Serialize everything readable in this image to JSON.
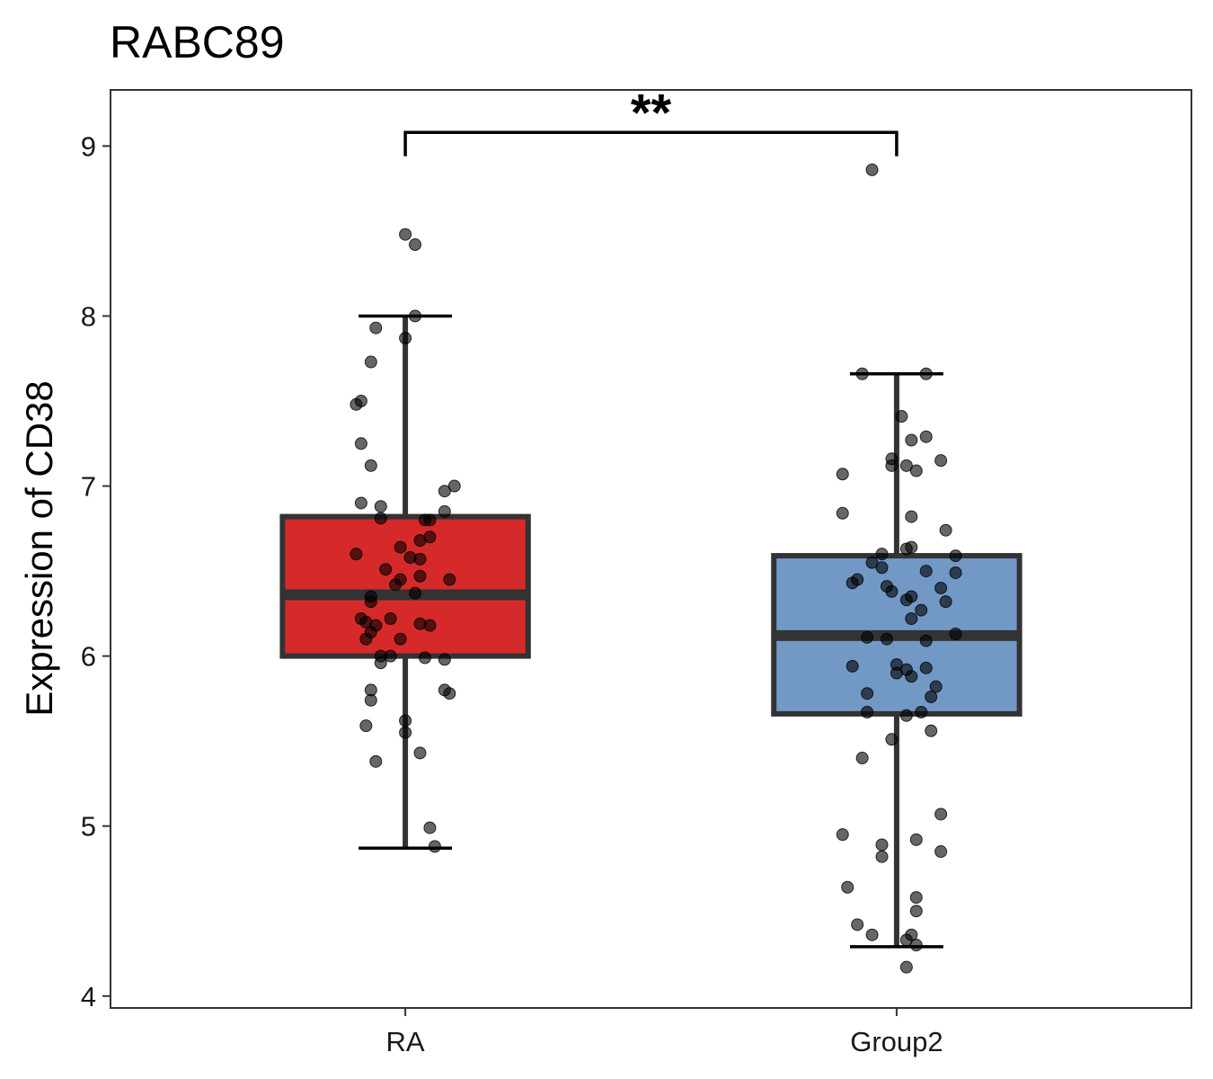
{
  "chart_data": {
    "type": "box",
    "title": "RABC89",
    "xlabel": "",
    "ylabel": "Expression of CD38",
    "ylim": [
      3.93,
      9.33
    ],
    "yticks": [
      "4",
      "5",
      "6",
      "7",
      "8",
      "9"
    ],
    "grid": false,
    "legend": "none",
    "significance": {
      "from": "RA",
      "to": "Group2",
      "label": "**"
    },
    "groups": [
      {
        "name": "RA",
        "color": "#D62A2A",
        "whisker_low": 4.87,
        "q1": 6.0,
        "median": 6.36,
        "q3": 6.82,
        "whisker_high": 8.0,
        "points": [
          [
            0,
            8.48
          ],
          [
            0.02,
            8.42
          ],
          [
            0.02,
            8.0
          ],
          [
            -0.06,
            7.93
          ],
          [
            0,
            7.87
          ],
          [
            -0.07,
            7.73
          ],
          [
            -0.09,
            7.5
          ],
          [
            -0.1,
            7.48
          ],
          [
            -0.09,
            7.25
          ],
          [
            -0.07,
            7.12
          ],
          [
            0.1,
            7.0
          ],
          [
            0.08,
            6.97
          ],
          [
            -0.09,
            6.9
          ],
          [
            -0.05,
            6.88
          ],
          [
            0.08,
            6.85
          ],
          [
            -0.05,
            6.81
          ],
          [
            0.05,
            6.8
          ],
          [
            0.04,
            6.8
          ],
          [
            0.05,
            6.7
          ],
          [
            0.03,
            6.68
          ],
          [
            -0.01,
            6.64
          ],
          [
            -0.1,
            6.6
          ],
          [
            0.01,
            6.58
          ],
          [
            0.03,
            6.57
          ],
          [
            -0.04,
            6.51
          ],
          [
            0.03,
            6.47
          ],
          [
            0.09,
            6.45
          ],
          [
            -0.01,
            6.45
          ],
          [
            -0.02,
            6.42
          ],
          [
            0.02,
            6.37
          ],
          [
            -0.07,
            6.35
          ],
          [
            -0.07,
            6.32
          ],
          [
            -0.03,
            6.22
          ],
          [
            -0.09,
            6.22
          ],
          [
            -0.08,
            6.2
          ],
          [
            0.03,
            6.19
          ],
          [
            -0.06,
            6.18
          ],
          [
            0.05,
            6.18
          ],
          [
            -0.07,
            6.14
          ],
          [
            -0.01,
            6.1
          ],
          [
            -0.08,
            6.1
          ],
          [
            -0.03,
            6.0
          ],
          [
            -0.05,
            6.0
          ],
          [
            0.04,
            5.99
          ],
          [
            0.08,
            5.98
          ],
          [
            -0.05,
            5.96
          ],
          [
            0.08,
            5.8
          ],
          [
            0.09,
            5.78
          ],
          [
            -0.07,
            5.8
          ],
          [
            -0.07,
            5.74
          ],
          [
            0.0,
            5.62
          ],
          [
            -0.08,
            5.59
          ],
          [
            0.0,
            5.55
          ],
          [
            0.03,
            5.43
          ],
          [
            -0.06,
            5.38
          ],
          [
            0.05,
            4.99
          ],
          [
            0.06,
            4.88
          ]
        ]
      },
      {
        "name": "Group2",
        "color": "#7298C6",
        "whisker_low": 4.29,
        "q1": 5.66,
        "median": 6.12,
        "q3": 6.59,
        "whisker_high": 7.66,
        "points": [
          [
            -0.05,
            8.86
          ],
          [
            -0.07,
            7.66
          ],
          [
            0.06,
            7.66
          ],
          [
            0.01,
            7.41
          ],
          [
            0.06,
            7.29
          ],
          [
            0.03,
            7.27
          ],
          [
            0.09,
            7.15
          ],
          [
            -0.01,
            7.16
          ],
          [
            0.02,
            7.12
          ],
          [
            -0.01,
            7.12
          ],
          [
            0.04,
            7.09
          ],
          [
            -0.11,
            7.07
          ],
          [
            -0.11,
            6.84
          ],
          [
            0.03,
            6.82
          ],
          [
            0.1,
            6.74
          ],
          [
            0.03,
            6.64
          ],
          [
            0.02,
            6.63
          ],
          [
            -0.03,
            6.6
          ],
          [
            0.12,
            6.59
          ],
          [
            -0.05,
            6.55
          ],
          [
            -0.03,
            6.52
          ],
          [
            0.06,
            6.5
          ],
          [
            0.12,
            6.49
          ],
          [
            -0.08,
            6.45
          ],
          [
            -0.09,
            6.43
          ],
          [
            -0.02,
            6.41
          ],
          [
            0.09,
            6.4
          ],
          [
            -0.01,
            6.38
          ],
          [
            0.03,
            6.35
          ],
          [
            0.02,
            6.33
          ],
          [
            0.1,
            6.32
          ],
          [
            0.05,
            6.27
          ],
          [
            0.03,
            6.22
          ],
          [
            0.12,
            6.13
          ],
          [
            -0.06,
            6.11
          ],
          [
            0.06,
            6.09
          ],
          [
            -0.02,
            6.1
          ],
          [
            -0.09,
            5.94
          ],
          [
            0.0,
            5.95
          ],
          [
            0.06,
            5.93
          ],
          [
            0.02,
            5.92
          ],
          [
            0.0,
            5.9
          ],
          [
            0.03,
            5.88
          ],
          [
            0.08,
            5.82
          ],
          [
            -0.06,
            5.78
          ],
          [
            0.07,
            5.76
          ],
          [
            -0.06,
            5.67
          ],
          [
            0.05,
            5.67
          ],
          [
            0.02,
            5.65
          ],
          [
            0.07,
            5.56
          ],
          [
            -0.01,
            5.51
          ],
          [
            -0.07,
            5.4
          ],
          [
            0.09,
            5.07
          ],
          [
            -0.11,
            4.95
          ],
          [
            0.04,
            4.92
          ],
          [
            -0.03,
            4.89
          ],
          [
            -0.03,
            4.82
          ],
          [
            0.09,
            4.85
          ],
          [
            -0.1,
            4.64
          ],
          [
            0.04,
            4.58
          ],
          [
            0.04,
            4.5
          ],
          [
            -0.08,
            4.42
          ],
          [
            -0.05,
            4.36
          ],
          [
            0.03,
            4.36
          ],
          [
            0.02,
            4.33
          ],
          [
            0.04,
            4.3
          ],
          [
            0.02,
            4.17
          ]
        ]
      }
    ]
  }
}
